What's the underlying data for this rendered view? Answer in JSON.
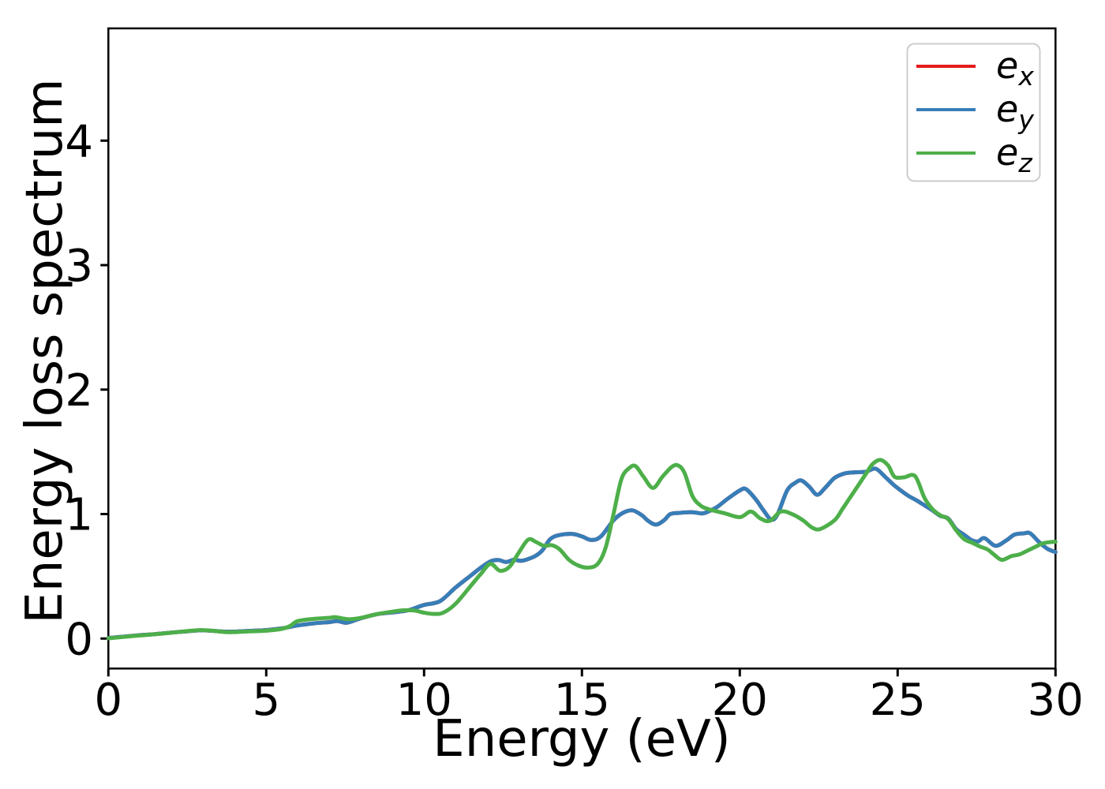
{
  "figure": {
    "background": "#ffffff",
    "axis_color": "#000000",
    "legend_border_color": "#cccccc"
  },
  "chart_data": {
    "type": "line",
    "title": "",
    "xlabel": "Energy (eV)",
    "ylabel": "Energy loss spectrum",
    "xlim": [
      0,
      30
    ],
    "ylim": [
      -0.241,
      4.902
    ],
    "xticks": [
      0,
      5,
      10,
      15,
      20,
      25,
      30
    ],
    "yticks": [
      0,
      1,
      2,
      3,
      4
    ],
    "grid": false,
    "legend_position": "upper right",
    "series": [
      {
        "name": "e_x",
        "legend_base": "e",
        "legend_sub": "x",
        "color": "#e41a1c",
        "points": [
          [
            0,
            0.005
          ],
          [
            0.5,
            0.015
          ],
          [
            1,
            0.027
          ],
          [
            1.5,
            0.036
          ],
          [
            2,
            0.048
          ],
          [
            2.5,
            0.058
          ],
          [
            2.9,
            0.066
          ],
          [
            3.3,
            0.062
          ],
          [
            3.7,
            0.055
          ],
          [
            4,
            0.056
          ],
          [
            4.5,
            0.062
          ],
          [
            5,
            0.068
          ],
          [
            5.5,
            0.082
          ],
          [
            6,
            0.105
          ],
          [
            6.5,
            0.122
          ],
          [
            7,
            0.132
          ],
          [
            7.25,
            0.141
          ],
          [
            7.55,
            0.127
          ],
          [
            8,
            0.163
          ],
          [
            8.5,
            0.195
          ],
          [
            9,
            0.21
          ],
          [
            9.5,
            0.227
          ],
          [
            10,
            0.27
          ],
          [
            10.5,
            0.3
          ],
          [
            11,
            0.41
          ],
          [
            11.5,
            0.51
          ],
          [
            11.8,
            0.57
          ],
          [
            12.1,
            0.62
          ],
          [
            12.35,
            0.631
          ],
          [
            12.6,
            0.615
          ],
          [
            12.85,
            0.633
          ],
          [
            13.1,
            0.625
          ],
          [
            13.5,
            0.66
          ],
          [
            13.75,
            0.71
          ],
          [
            14,
            0.8
          ],
          [
            14.3,
            0.832
          ],
          [
            14.7,
            0.84
          ],
          [
            15,
            0.82
          ],
          [
            15.3,
            0.792
          ],
          [
            15.6,
            0.82
          ],
          [
            16,
            0.95
          ],
          [
            16.3,
            1.01
          ],
          [
            16.6,
            1.03
          ],
          [
            16.9,
            0.99
          ],
          [
            17.1,
            0.945
          ],
          [
            17.35,
            0.915
          ],
          [
            17.6,
            0.95
          ],
          [
            17.8,
            1.0
          ],
          [
            18.1,
            1.01
          ],
          [
            18.5,
            1.015
          ],
          [
            18.8,
            1.005
          ],
          [
            19,
            1.02
          ],
          [
            19.3,
            1.06
          ],
          [
            19.6,
            1.12
          ],
          [
            20,
            1.19
          ],
          [
            20.2,
            1.2
          ],
          [
            20.5,
            1.12
          ],
          [
            20.75,
            1.03
          ],
          [
            21,
            0.955
          ],
          [
            21.2,
            1.0
          ],
          [
            21.5,
            1.19
          ],
          [
            21.75,
            1.25
          ],
          [
            21.95,
            1.27
          ],
          [
            22.2,
            1.22
          ],
          [
            22.45,
            1.155
          ],
          [
            22.7,
            1.21
          ],
          [
            23,
            1.29
          ],
          [
            23.3,
            1.325
          ],
          [
            23.6,
            1.335
          ],
          [
            24,
            1.34
          ],
          [
            24.3,
            1.365
          ],
          [
            24.6,
            1.3
          ],
          [
            24.85,
            1.24
          ],
          [
            25.1,
            1.19
          ],
          [
            25.35,
            1.145
          ],
          [
            25.6,
            1.11
          ],
          [
            25.85,
            1.07
          ],
          [
            26.1,
            1.03
          ],
          [
            26.35,
            0.985
          ],
          [
            26.6,
            0.965
          ],
          [
            26.85,
            0.88
          ],
          [
            27.1,
            0.835
          ],
          [
            27.35,
            0.79
          ],
          [
            27.55,
            0.78
          ],
          [
            27.75,
            0.807
          ],
          [
            28.1,
            0.745
          ],
          [
            28.45,
            0.79
          ],
          [
            28.7,
            0.835
          ],
          [
            29,
            0.845
          ],
          [
            29.2,
            0.845
          ],
          [
            29.5,
            0.77
          ],
          [
            29.75,
            0.72
          ],
          [
            30,
            0.695
          ]
        ]
      },
      {
        "name": "e_y",
        "legend_base": "e",
        "legend_sub": "y",
        "color": "#377eb8",
        "points": [
          [
            0,
            0.005
          ],
          [
            0.5,
            0.015
          ],
          [
            1,
            0.027
          ],
          [
            1.5,
            0.036
          ],
          [
            2,
            0.048
          ],
          [
            2.5,
            0.058
          ],
          [
            2.9,
            0.066
          ],
          [
            3.3,
            0.062
          ],
          [
            3.7,
            0.055
          ],
          [
            4,
            0.056
          ],
          [
            4.5,
            0.062
          ],
          [
            5,
            0.068
          ],
          [
            5.5,
            0.082
          ],
          [
            6,
            0.105
          ],
          [
            6.5,
            0.122
          ],
          [
            7,
            0.132
          ],
          [
            7.25,
            0.141
          ],
          [
            7.55,
            0.127
          ],
          [
            8,
            0.163
          ],
          [
            8.5,
            0.195
          ],
          [
            9,
            0.21
          ],
          [
            9.5,
            0.227
          ],
          [
            10,
            0.27
          ],
          [
            10.5,
            0.3
          ],
          [
            11,
            0.41
          ],
          [
            11.5,
            0.51
          ],
          [
            11.8,
            0.57
          ],
          [
            12.1,
            0.62
          ],
          [
            12.35,
            0.631
          ],
          [
            12.6,
            0.615
          ],
          [
            12.85,
            0.633
          ],
          [
            13.1,
            0.625
          ],
          [
            13.5,
            0.66
          ],
          [
            13.75,
            0.71
          ],
          [
            14,
            0.8
          ],
          [
            14.3,
            0.832
          ],
          [
            14.7,
            0.84
          ],
          [
            15,
            0.82
          ],
          [
            15.3,
            0.792
          ],
          [
            15.6,
            0.82
          ],
          [
            16,
            0.95
          ],
          [
            16.3,
            1.01
          ],
          [
            16.6,
            1.03
          ],
          [
            16.9,
            0.99
          ],
          [
            17.1,
            0.945
          ],
          [
            17.35,
            0.915
          ],
          [
            17.6,
            0.95
          ],
          [
            17.8,
            1.0
          ],
          [
            18.1,
            1.01
          ],
          [
            18.5,
            1.015
          ],
          [
            18.8,
            1.005
          ],
          [
            19,
            1.02
          ],
          [
            19.3,
            1.06
          ],
          [
            19.6,
            1.12
          ],
          [
            20,
            1.19
          ],
          [
            20.2,
            1.2
          ],
          [
            20.5,
            1.12
          ],
          [
            20.75,
            1.03
          ],
          [
            21,
            0.955
          ],
          [
            21.2,
            1.0
          ],
          [
            21.5,
            1.19
          ],
          [
            21.75,
            1.25
          ],
          [
            21.95,
            1.27
          ],
          [
            22.2,
            1.22
          ],
          [
            22.45,
            1.155
          ],
          [
            22.7,
            1.21
          ],
          [
            23,
            1.29
          ],
          [
            23.3,
            1.325
          ],
          [
            23.6,
            1.335
          ],
          [
            24,
            1.34
          ],
          [
            24.3,
            1.365
          ],
          [
            24.6,
            1.3
          ],
          [
            24.85,
            1.24
          ],
          [
            25.1,
            1.19
          ],
          [
            25.35,
            1.145
          ],
          [
            25.6,
            1.11
          ],
          [
            25.85,
            1.07
          ],
          [
            26.1,
            1.03
          ],
          [
            26.35,
            0.985
          ],
          [
            26.6,
            0.965
          ],
          [
            26.85,
            0.88
          ],
          [
            27.1,
            0.835
          ],
          [
            27.35,
            0.79
          ],
          [
            27.55,
            0.78
          ],
          [
            27.75,
            0.807
          ],
          [
            28.1,
            0.745
          ],
          [
            28.45,
            0.79
          ],
          [
            28.7,
            0.835
          ],
          [
            29,
            0.845
          ],
          [
            29.2,
            0.845
          ],
          [
            29.5,
            0.77
          ],
          [
            29.75,
            0.72
          ],
          [
            30,
            0.695
          ]
        ]
      },
      {
        "name": "e_z",
        "legend_base": "e",
        "legend_sub": "z",
        "color": "#4daf4a",
        "points": [
          [
            0,
            0.002
          ],
          [
            0.5,
            0.013
          ],
          [
            1,
            0.025
          ],
          [
            1.5,
            0.035
          ],
          [
            2,
            0.047
          ],
          [
            2.5,
            0.06
          ],
          [
            2.9,
            0.068
          ],
          [
            3.3,
            0.063
          ],
          [
            3.7,
            0.052
          ],
          [
            4,
            0.052
          ],
          [
            4.5,
            0.058
          ],
          [
            5,
            0.063
          ],
          [
            5.5,
            0.078
          ],
          [
            5.75,
            0.1
          ],
          [
            6,
            0.14
          ],
          [
            6.5,
            0.158
          ],
          [
            7,
            0.167
          ],
          [
            7.2,
            0.172
          ],
          [
            7.6,
            0.155
          ],
          [
            8,
            0.166
          ],
          [
            8.5,
            0.196
          ],
          [
            9,
            0.216
          ],
          [
            9.35,
            0.227
          ],
          [
            9.7,
            0.225
          ],
          [
            10,
            0.207
          ],
          [
            10.3,
            0.198
          ],
          [
            10.6,
            0.207
          ],
          [
            11,
            0.28
          ],
          [
            11.5,
            0.43
          ],
          [
            11.8,
            0.52
          ],
          [
            12.1,
            0.6
          ],
          [
            12.4,
            0.545
          ],
          [
            12.7,
            0.575
          ],
          [
            13,
            0.69
          ],
          [
            13.3,
            0.795
          ],
          [
            13.55,
            0.775
          ],
          [
            13.8,
            0.745
          ],
          [
            14.05,
            0.75
          ],
          [
            14.3,
            0.715
          ],
          [
            14.6,
            0.63
          ],
          [
            14.9,
            0.585
          ],
          [
            15.2,
            0.57
          ],
          [
            15.5,
            0.6
          ],
          [
            15.75,
            0.73
          ],
          [
            16,
            1.0
          ],
          [
            16.25,
            1.28
          ],
          [
            16.5,
            1.37
          ],
          [
            16.7,
            1.385
          ],
          [
            16.95,
            1.3
          ],
          [
            17.25,
            1.21
          ],
          [
            17.55,
            1.3
          ],
          [
            17.85,
            1.38
          ],
          [
            18.05,
            1.39
          ],
          [
            18.25,
            1.33
          ],
          [
            18.5,
            1.145
          ],
          [
            18.75,
            1.07
          ],
          [
            19,
            1.04
          ],
          [
            19.5,
            1.008
          ],
          [
            20,
            0.975
          ],
          [
            20.35,
            1.02
          ],
          [
            20.65,
            0.965
          ],
          [
            20.95,
            0.945
          ],
          [
            21.3,
            1.02
          ],
          [
            21.65,
            1.0
          ],
          [
            22,
            0.95
          ],
          [
            22.3,
            0.89
          ],
          [
            22.55,
            0.88
          ],
          [
            23,
            0.95
          ],
          [
            23.25,
            1.04
          ],
          [
            23.5,
            1.135
          ],
          [
            23.75,
            1.23
          ],
          [
            24,
            1.325
          ],
          [
            24.2,
            1.4
          ],
          [
            24.45,
            1.435
          ],
          [
            24.7,
            1.39
          ],
          [
            24.9,
            1.3
          ],
          [
            25.2,
            1.295
          ],
          [
            25.55,
            1.305
          ],
          [
            25.85,
            1.13
          ],
          [
            26.1,
            1.04
          ],
          [
            26.35,
            0.99
          ],
          [
            26.6,
            0.96
          ],
          [
            26.85,
            0.87
          ],
          [
            27.1,
            0.8
          ],
          [
            27.4,
            0.765
          ],
          [
            27.6,
            0.74
          ],
          [
            27.85,
            0.715
          ],
          [
            28.05,
            0.675
          ],
          [
            28.3,
            0.632
          ],
          [
            28.6,
            0.662
          ],
          [
            28.85,
            0.675
          ],
          [
            29.1,
            0.705
          ],
          [
            29.35,
            0.735
          ],
          [
            29.6,
            0.765
          ],
          [
            29.85,
            0.775
          ],
          [
            30,
            0.778
          ]
        ]
      }
    ]
  }
}
